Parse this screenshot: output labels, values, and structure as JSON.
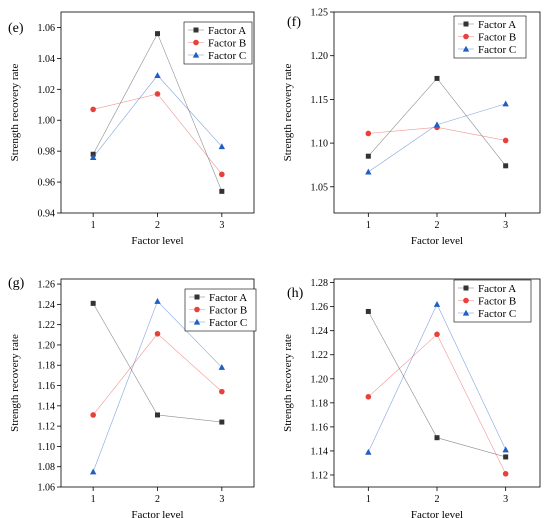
{
  "chart_data": [
    {
      "type": "line",
      "panel": "(e)",
      "categories": [
        "1",
        "2",
        "3"
      ],
      "xlabel": "Factor level",
      "ylabel": "Strength recovery rate",
      "ylim": [
        0.94,
        1.07
      ],
      "yticks": [
        "0.94",
        "0.96",
        "0.98",
        "1.00",
        "1.02",
        "1.04",
        "1.06"
      ],
      "series": [
        {
          "name": "Factor A",
          "marker": "square",
          "color": "#333333",
          "values": [
            0.978,
            1.056,
            0.954
          ]
        },
        {
          "name": "Factor B",
          "marker": "circle",
          "color": "#e8413c",
          "values": [
            1.007,
            1.017,
            0.965
          ]
        },
        {
          "name": "Factor C",
          "marker": "triangle",
          "color": "#1f5fc2",
          "values": [
            0.976,
            1.029,
            0.983
          ]
        }
      ]
    },
    {
      "type": "line",
      "panel": "(f)",
      "categories": [
        "1",
        "2",
        "3"
      ],
      "xlabel": "Factor level",
      "ylabel": "Strength recovery rate",
      "ylim": [
        1.02,
        1.25
      ],
      "yticks": [
        "1.05",
        "1.10",
        "1.15",
        "1.20",
        "1.25"
      ],
      "series": [
        {
          "name": "Factor A",
          "marker": "square",
          "color": "#333333",
          "values": [
            1.085,
            1.174,
            1.074
          ]
        },
        {
          "name": "Factor B",
          "marker": "circle",
          "color": "#e8413c",
          "values": [
            1.111,
            1.118,
            1.103
          ]
        },
        {
          "name": "Factor C",
          "marker": "triangle",
          "color": "#1f5fc2",
          "values": [
            1.067,
            1.121,
            1.145
          ]
        }
      ]
    },
    {
      "type": "line",
      "panel": "(g)",
      "categories": [
        "1",
        "2",
        "3"
      ],
      "xlabel": "Factor level",
      "ylabel": "Strength recovery rate",
      "ylim": [
        1.06,
        1.265
      ],
      "yticks": [
        "1.06",
        "1.08",
        "1.10",
        "1.12",
        "1.14",
        "1.16",
        "1.18",
        "1.20",
        "1.22",
        "1.24",
        "1.26"
      ],
      "series": [
        {
          "name": "Factor A",
          "marker": "square",
          "color": "#333333",
          "values": [
            1.241,
            1.131,
            1.124
          ]
        },
        {
          "name": "Factor B",
          "marker": "circle",
          "color": "#e8413c",
          "values": [
            1.131,
            1.211,
            1.154
          ]
        },
        {
          "name": "Factor C",
          "marker": "triangle",
          "color": "#1f5fc2",
          "values": [
            1.075,
            1.243,
            1.178
          ]
        }
      ]
    },
    {
      "type": "line",
      "panel": "(h)",
      "categories": [
        "1",
        "2",
        "3"
      ],
      "xlabel": "Factor level",
      "ylabel": "Strength recovery rate",
      "ylim": [
        1.11,
        1.283
      ],
      "yticks": [
        "1.12",
        "1.14",
        "1.16",
        "1.18",
        "1.20",
        "1.22",
        "1.24",
        "1.26",
        "1.28"
      ],
      "series": [
        {
          "name": "Factor A",
          "marker": "square",
          "color": "#333333",
          "values": [
            1.256,
            1.151,
            1.135
          ]
        },
        {
          "name": "Factor B",
          "marker": "circle",
          "color": "#e8413c",
          "values": [
            1.185,
            1.237,
            1.121
          ]
        },
        {
          "name": "Factor C",
          "marker": "triangle",
          "color": "#1f5fc2",
          "values": [
            1.139,
            1.262,
            1.141
          ]
        }
      ]
    }
  ]
}
